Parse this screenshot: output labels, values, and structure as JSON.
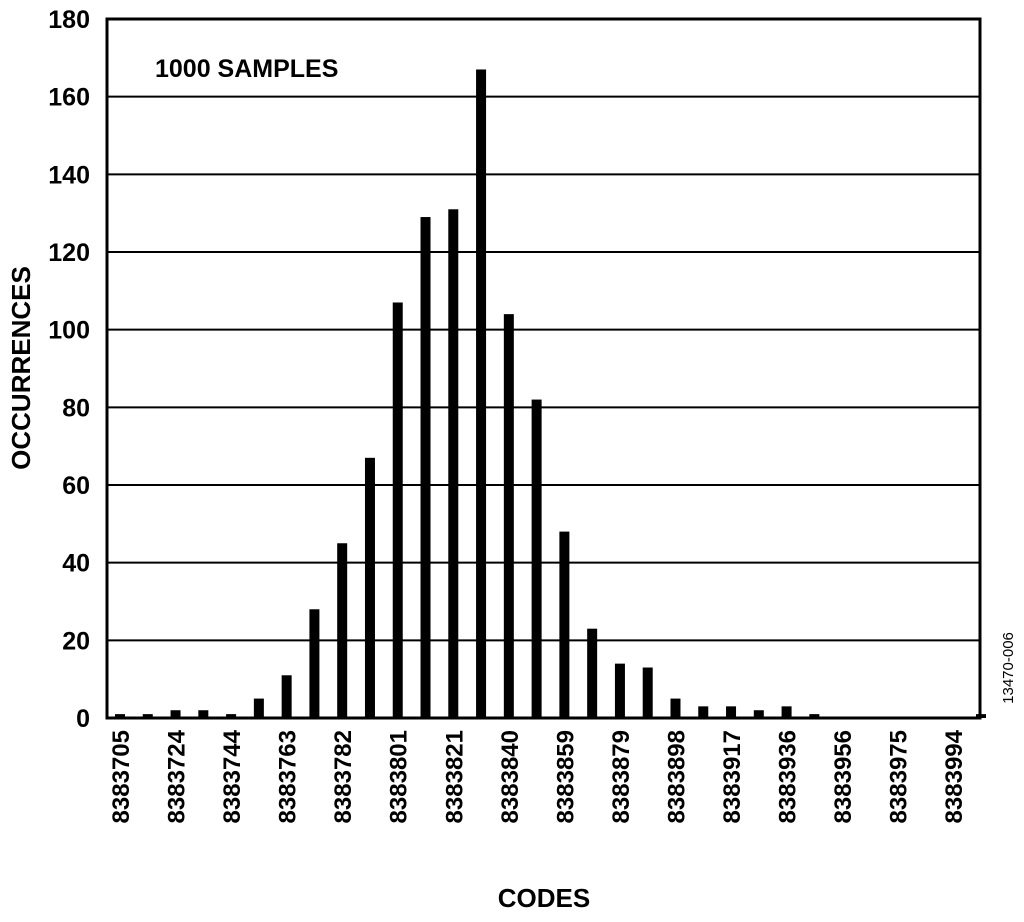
{
  "chart_data": {
    "type": "bar",
    "title": "",
    "annotation": "1000 SAMPLES",
    "xlabel": "CODES",
    "ylabel": "OCCURRENCES",
    "figure_id": "13470-006",
    "ylim": [
      0,
      180
    ],
    "yticks": [
      0,
      20,
      40,
      60,
      80,
      100,
      120,
      140,
      160,
      180
    ],
    "grid": true,
    "xtick_labels": [
      "8383705",
      "8383724",
      "8383744",
      "8383763",
      "8383782",
      "8383801",
      "8383821",
      "8383840",
      "8383859",
      "8383879",
      "8383898",
      "8383917",
      "8383936",
      "8383956",
      "8383975",
      "8383994"
    ],
    "values": [
      1,
      1,
      2,
      2,
      1,
      5,
      11,
      28,
      45,
      67,
      107,
      129,
      131,
      167,
      104,
      82,
      48,
      23,
      14,
      13,
      5,
      3,
      3,
      2,
      3,
      1,
      0,
      0,
      0,
      0,
      0,
      1
    ],
    "bar_color": "#000000"
  }
}
